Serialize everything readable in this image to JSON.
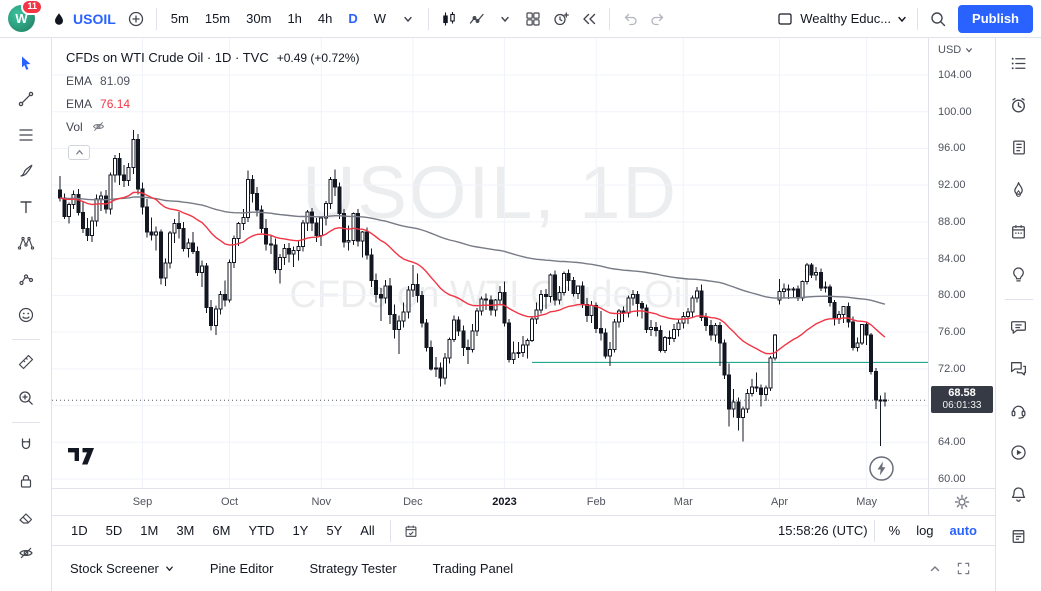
{
  "header": {
    "logo_badge": "11",
    "symbol": "USOIL",
    "timeframes": [
      "5m",
      "15m",
      "30m",
      "1h",
      "4h",
      "D",
      "W"
    ],
    "active_timeframe": "D",
    "layout_name": "Wealthy Educ...",
    "publish_label": "Publish"
  },
  "legend": {
    "title": "CFDs on WTI Crude Oil · 1D · TVC",
    "change": "+0.49 (+0.72%)",
    "ema_rows": [
      {
        "label": "EMA",
        "value": "81.09"
      },
      {
        "label": "EMA",
        "value": "76.14"
      }
    ],
    "vol_label": "Vol"
  },
  "watermark": {
    "line1": "USOIL, 1D",
    "line2": "CFDs on WTI Crude Oil"
  },
  "price_scale": {
    "currency_label": "USD",
    "last_price": "68.58",
    "countdown": "06:01:33",
    "ticks": [
      "104.00",
      "100.00",
      "96.00",
      "92.00",
      "88.00",
      "84.00",
      "80.00",
      "76.00",
      "72.00",
      "68.00",
      "64.00",
      "60.00"
    ]
  },
  "footer": {
    "ranges": [
      "1D",
      "5D",
      "1M",
      "3M",
      "6M",
      "YTD",
      "1Y",
      "5Y",
      "All"
    ],
    "clock": "15:58:26 (UTC)",
    "percent_label": "%",
    "log_label": "log",
    "auto_label": "auto"
  },
  "panel_tabs": [
    "Stock Screener",
    "Pine Editor",
    "Strategy Tester",
    "Trading Panel"
  ],
  "colors": {
    "accent": "#2962ff",
    "red": "#f23645",
    "green": "#089981",
    "text": "#131722",
    "muted": "#787b86",
    "border": "#e0e3eb",
    "grid": "#f0f3fa",
    "tag_bg": "#363a45",
    "candle": "#131722"
  },
  "chart_data": {
    "type": "candlestick",
    "symbol": "USOIL",
    "interval": "1D",
    "exchange": "TVC",
    "description": "CFDs on WTI Crude Oil",
    "change": 0.49,
    "change_pct": 0.72,
    "last_price": 68.58,
    "price_range_visible": [
      60,
      104
    ],
    "y_ticks": [
      104,
      100,
      96,
      92,
      88,
      84,
      80,
      76,
      72,
      68,
      64,
      60
    ],
    "months": [
      {
        "label": "Sep",
        "index": 18
      },
      {
        "label": "Oct",
        "index": 37
      },
      {
        "label": "Nov",
        "index": 57
      },
      {
        "label": "Dec",
        "index": 77
      },
      {
        "label": "2023",
        "index": 97
      },
      {
        "label": "Feb",
        "index": 117
      },
      {
        "label": "Mar",
        "index": 136
      },
      {
        "label": "Apr",
        "index": 157
      },
      {
        "label": "May",
        "index": 176
      }
    ],
    "ema": [
      {
        "value": 81.09,
        "period": 150,
        "color": "#787b86"
      },
      {
        "value": 76.14,
        "period": 34,
        "color": "#f23645"
      }
    ],
    "support_line": {
      "price": 72.7,
      "start_index": 103,
      "color": "#089981"
    },
    "candles": [
      [
        91.5,
        93.0,
        90.2,
        90.6
      ],
      [
        90.6,
        91.1,
        88.3,
        88.6
      ],
      [
        88.6,
        90.1,
        87.8,
        89.9
      ],
      [
        89.9,
        91.4,
        89.4,
        91.0
      ],
      [
        91.0,
        91.6,
        88.7,
        89.0
      ],
      [
        89.0,
        90.3,
        86.8,
        87.3
      ],
      [
        87.3,
        88.4,
        85.9,
        86.5
      ],
      [
        86.5,
        88.6,
        85.8,
        88.1
      ],
      [
        88.1,
        91.0,
        87.5,
        90.5
      ],
      [
        90.5,
        91.3,
        89.2,
        90.8
      ],
      [
        90.8,
        91.5,
        88.9,
        89.4
      ],
      [
        89.4,
        93.4,
        88.8,
        93.1
      ],
      [
        93.1,
        95.3,
        92.3,
        94.9
      ],
      [
        94.9,
        95.5,
        92.0,
        93.1
      ],
      [
        93.1,
        94.2,
        91.8,
        92.5
      ],
      [
        92.5,
        94.4,
        91.9,
        93.9
      ],
      [
        93.9,
        98.0,
        93.2,
        97.0
      ],
      [
        97.0,
        97.6,
        91.0,
        91.6
      ],
      [
        91.6,
        92.3,
        88.8,
        89.6
      ],
      [
        89.6,
        90.5,
        86.3,
        86.9
      ],
      [
        86.9,
        88.5,
        86.0,
        86.6
      ],
      [
        86.6,
        87.5,
        84.9,
        86.9
      ],
      [
        86.9,
        87.2,
        81.2,
        81.9
      ],
      [
        81.9,
        84.0,
        81.0,
        83.5
      ],
      [
        83.5,
        87.0,
        82.9,
        86.8
      ],
      [
        86.8,
        88.3,
        85.7,
        87.8
      ],
      [
        87.8,
        89.1,
        86.2,
        87.3
      ],
      [
        87.3,
        88.0,
        84.8,
        85.1
      ],
      [
        85.1,
        86.2,
        84.1,
        85.7
      ],
      [
        85.7,
        86.9,
        84.5,
        84.8
      ],
      [
        84.8,
        85.3,
        82.1,
        82.5
      ],
      [
        82.5,
        83.8,
        80.9,
        83.2
      ],
      [
        83.2,
        83.5,
        78.1,
        78.7
      ],
      [
        78.7,
        79.5,
        76.2,
        76.7
      ],
      [
        76.7,
        78.9,
        75.7,
        78.5
      ],
      [
        78.5,
        80.5,
        77.9,
        80.1
      ],
      [
        80.1,
        81.6,
        78.8,
        79.5
      ],
      [
        79.5,
        83.9,
        79.2,
        83.6
      ],
      [
        83.6,
        86.5,
        83.0,
        86.2
      ],
      [
        86.2,
        88.0,
        85.4,
        87.8
      ],
      [
        87.8,
        89.4,
        87.1,
        88.5
      ],
      [
        88.5,
        93.6,
        88.0,
        92.6
      ],
      [
        92.6,
        93.1,
        90.1,
        91.1
      ],
      [
        91.1,
        91.8,
        88.6,
        89.3
      ],
      [
        89.3,
        89.8,
        86.8,
        87.3
      ],
      [
        87.3,
        88.3,
        84.9,
        85.6
      ],
      [
        85.6,
        86.6,
        84.5,
        85.5
      ],
      [
        85.5,
        86.2,
        82.4,
        82.8
      ],
      [
        82.8,
        84.5,
        81.3,
        84.1
      ],
      [
        84.1,
        85.6,
        83.3,
        85.1
      ],
      [
        85.1,
        85.7,
        83.6,
        84.5
      ],
      [
        84.5,
        85.3,
        83.1,
        84.9
      ],
      [
        84.9,
        86.0,
        83.8,
        85.3
      ],
      [
        85.3,
        88.2,
        84.8,
        87.9
      ],
      [
        87.9,
        89.3,
        87.0,
        89.1
      ],
      [
        89.1,
        89.5,
        87.0,
        87.9
      ],
      [
        87.9,
        88.4,
        85.8,
        86.5
      ],
      [
        86.5,
        88.5,
        85.4,
        88.4
      ],
      [
        88.4,
        90.3,
        87.6,
        90.0
      ],
      [
        90.0,
        92.9,
        89.4,
        92.6
      ],
      [
        92.6,
        93.7,
        90.8,
        91.8
      ],
      [
        91.8,
        92.3,
        88.3,
        88.9
      ],
      [
        88.9,
        89.4,
        85.2,
        85.8
      ],
      [
        85.8,
        87.6,
        84.9,
        86.0
      ],
      [
        86.0,
        89.0,
        85.5,
        88.9
      ],
      [
        88.9,
        89.4,
        85.3,
        85.9
      ],
      [
        85.9,
        87.0,
        84.1,
        86.9
      ],
      [
        86.9,
        87.4,
        83.9,
        84.4
      ],
      [
        84.4,
        85.1,
        80.9,
        81.6
      ],
      [
        81.6,
        82.4,
        79.2,
        80.1
      ],
      [
        80.1,
        80.8,
        77.2,
        79.7
      ],
      [
        79.7,
        81.7,
        79.1,
        81.0
      ],
      [
        81.0,
        81.9,
        76.9,
        77.9
      ],
      [
        77.9,
        79.0,
        75.3,
        76.3
      ],
      [
        76.3,
        77.8,
        73.6,
        77.2
      ],
      [
        77.2,
        79.2,
        76.5,
        78.2
      ],
      [
        78.2,
        81.0,
        77.5,
        80.6
      ],
      [
        80.6,
        83.3,
        79.8,
        81.2
      ],
      [
        81.2,
        82.4,
        79.2,
        80.0
      ],
      [
        80.0,
        80.5,
        76.5,
        77.0
      ],
      [
        77.0,
        77.4,
        73.9,
        74.3
      ],
      [
        74.3,
        75.1,
        71.8,
        72.0
      ],
      [
        72.0,
        73.3,
        71.1,
        72.1
      ],
      [
        72.1,
        72.7,
        70.1,
        71.0
      ],
      [
        71.0,
        73.7,
        70.3,
        73.2
      ],
      [
        73.2,
        75.4,
        72.6,
        75.2
      ],
      [
        75.2,
        77.8,
        74.9,
        77.3
      ],
      [
        77.3,
        77.7,
        75.6,
        76.1
      ],
      [
        76.1,
        76.7,
        73.4,
        74.3
      ],
      [
        74.3,
        75.2,
        72.5,
        74.1
      ],
      [
        74.1,
        76.9,
        73.8,
        76.1
      ],
      [
        76.1,
        78.6,
        75.6,
        78.3
      ],
      [
        78.3,
        79.9,
        77.8,
        79.6
      ],
      [
        79.6,
        80.2,
        78.4,
        79.5
      ],
      [
        79.5,
        80.0,
        77.8,
        78.4
      ],
      [
        78.4,
        79.6,
        77.7,
        79.5
      ],
      [
        79.5,
        81.0,
        78.9,
        80.3
      ],
      [
        80.3,
        81.5,
        76.6,
        77.0
      ],
      [
        77.0,
        77.4,
        72.7,
        73.0
      ],
      [
        73.0,
        75.0,
        72.5,
        73.7
      ],
      [
        73.7,
        74.9,
        73.2,
        73.8
      ],
      [
        73.8,
        75.6,
        73.3,
        74.6
      ],
      [
        74.6,
        75.3,
        73.1,
        75.1
      ],
      [
        75.1,
        77.7,
        74.9,
        77.4
      ],
      [
        77.4,
        79.2,
        76.9,
        78.4
      ],
      [
        78.4,
        80.6,
        78.0,
        80.1
      ],
      [
        80.1,
        80.7,
        78.5,
        79.9
      ],
      [
        79.9,
        82.4,
        79.2,
        82.2
      ],
      [
        82.2,
        82.7,
        78.9,
        79.5
      ],
      [
        79.5,
        81.0,
        79.0,
        80.3
      ],
      [
        80.3,
        82.6,
        80.0,
        82.4
      ],
      [
        82.4,
        82.8,
        80.5,
        81.6
      ],
      [
        81.6,
        82.0,
        79.9,
        80.2
      ],
      [
        80.2,
        81.1,
        79.6,
        81.0
      ],
      [
        81.0,
        81.5,
        78.6,
        79.0
      ],
      [
        79.0,
        79.7,
        77.1,
        77.8
      ],
      [
        77.8,
        79.4,
        77.0,
        78.9
      ],
      [
        78.9,
        79.2,
        75.9,
        76.4
      ],
      [
        76.4,
        78.3,
        75.1,
        75.9
      ],
      [
        75.9,
        76.4,
        73.1,
        73.4
      ],
      [
        73.4,
        74.9,
        72.3,
        74.1
      ],
      [
        74.1,
        77.4,
        73.8,
        77.1
      ],
      [
        77.1,
        78.5,
        76.5,
        78.3
      ],
      [
        78.3,
        78.8,
        77.1,
        78.1
      ],
      [
        78.1,
        80.0,
        77.6,
        79.7
      ],
      [
        79.7,
        80.6,
        78.9,
        80.1
      ],
      [
        80.1,
        80.5,
        77.7,
        79.1
      ],
      [
        79.1,
        79.4,
        77.5,
        78.6
      ],
      [
        78.6,
        79.0,
        75.9,
        76.3
      ],
      [
        76.3,
        77.3,
        75.6,
        76.5
      ],
      [
        76.5,
        77.1,
        75.5,
        76.2
      ],
      [
        76.2,
        76.7,
        73.8,
        74.0
      ],
      [
        74.0,
        75.6,
        73.7,
        75.4
      ],
      [
        75.4,
        76.2,
        74.6,
        75.3
      ],
      [
        75.3,
        76.9,
        74.9,
        76.3
      ],
      [
        76.3,
        77.4,
        75.5,
        77.0
      ],
      [
        77.0,
        78.2,
        76.4,
        77.7
      ],
      [
        77.7,
        78.6,
        76.9,
        78.2
      ],
      [
        78.2,
        80.0,
        77.6,
        79.7
      ],
      [
        79.7,
        80.9,
        79.2,
        80.5
      ],
      [
        80.5,
        81.2,
        77.2,
        77.6
      ],
      [
        77.6,
        78.1,
        76.1,
        76.7
      ],
      [
        76.7,
        77.3,
        75.1,
        75.7
      ],
      [
        75.7,
        77.0,
        74.9,
        76.7
      ],
      [
        76.7,
        77.1,
        72.3,
        74.8
      ],
      [
        74.8,
        75.2,
        70.9,
        71.3
      ],
      [
        71.3,
        72.6,
        65.7,
        67.6
      ],
      [
        67.6,
        69.8,
        66.7,
        68.4
      ],
      [
        68.4,
        68.9,
        65.3,
        66.7
      ],
      [
        66.7,
        67.9,
        64.1,
        67.6
      ],
      [
        67.6,
        69.8,
        67.2,
        69.3
      ],
      [
        69.3,
        70.9,
        69.0,
        70.0
      ],
      [
        70.0,
        71.6,
        69.5,
        69.9
      ],
      [
        69.9,
        70.3,
        67.9,
        69.2
      ],
      [
        69.2,
        70.2,
        68.5,
        69.9
      ],
      [
        69.9,
        73.4,
        69.6,
        73.2
      ],
      [
        73.2,
        75.8,
        72.9,
        75.7
      ],
      [
        79.5,
        81.8,
        79.0,
        80.4
      ],
      [
        80.4,
        81.3,
        79.7,
        80.7
      ],
      [
        80.7,
        81.2,
        79.6,
        80.6
      ],
      [
        80.6,
        80.9,
        79.7,
        80.7
      ],
      [
        80.7,
        81.1,
        79.4,
        79.7
      ],
      [
        79.7,
        81.6,
        79.4,
        81.5
      ],
      [
        81.5,
        83.5,
        81.2,
        83.3
      ],
      [
        83.3,
        83.5,
        81.9,
        82.2
      ],
      [
        82.2,
        83.1,
        81.6,
        82.5
      ],
      [
        82.5,
        82.9,
        80.5,
        80.8
      ],
      [
        80.8,
        81.5,
        80.3,
        80.9
      ],
      [
        80.9,
        81.2,
        78.8,
        79.2
      ],
      [
        79.2,
        79.5,
        76.7,
        77.4
      ],
      [
        77.4,
        78.3,
        76.9,
        77.9
      ],
      [
        77.9,
        78.8,
        77.0,
        78.8
      ],
      [
        78.8,
        79.2,
        76.5,
        77.1
      ],
      [
        77.1,
        77.7,
        74.0,
        74.3
      ],
      [
        74.3,
        75.4,
        73.9,
        74.8
      ],
      [
        74.8,
        76.9,
        74.6,
        76.8
      ],
      [
        76.8,
        77.1,
        74.6,
        75.7
      ],
      [
        75.7,
        75.9,
        71.4,
        71.7
      ],
      [
        71.7,
        72.1,
        67.6,
        68.6
      ],
      [
        68.6,
        69.1,
        63.6,
        68.6
      ],
      [
        68.6,
        69.4,
        67.9,
        68.58
      ]
    ]
  }
}
